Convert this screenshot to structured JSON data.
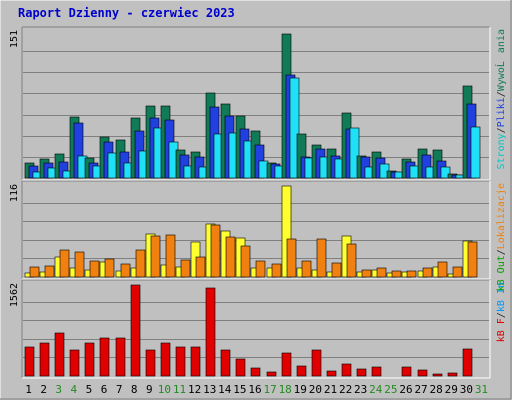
{
  "title": "Raport Dzienny -  czerwiec 2023",
  "colors": {
    "frame_bg": "#c0c0c0",
    "title": "#0000cc",
    "visits": "#117a56",
    "pages": "#2040e0",
    "files": "#20e0f8",
    "hits": "#ffff30",
    "sites": "#f08010",
    "kbf": "#e02020",
    "weekend_label": "#228b22",
    "label_blue": "#0000cc",
    "label_cyan": "#00c8c8",
    "label_orange": "#f08010",
    "label_green": "#00a000",
    "label_lightblue": "#0099ff",
    "label_red": "#e00000"
  },
  "right_labels": {
    "top": [
      {
        "text": "WywoĹania",
        "color": "#117a56"
      },
      {
        "text": "/",
        "color": "#222222"
      },
      {
        "text": "Pliki",
        "color": "#2040e0"
      },
      {
        "text": "/",
        "color": "#222222"
      },
      {
        "text": "Strony",
        "color": "#00c8c8"
      }
    ],
    "middle": [
      {
        "text": "Lokalizacje",
        "color": "#f08010"
      },
      {
        "text": "/",
        "color": "#222222"
      },
      {
        "text": "kB Out",
        "color": "#00a000"
      }
    ],
    "bottom": [
      {
        "text": "kB In",
        "color": "#0099ff"
      },
      {
        "text": "/",
        "color": "#222222"
      },
      {
        "text": "kB F",
        "color": "#e00000"
      }
    ]
  },
  "chart_data": {
    "type": "bar",
    "title": "Raport Dzienny -  czerwiec 2023",
    "x": [
      "1",
      "2",
      "3",
      "4",
      "5",
      "6",
      "7",
      "8",
      "9",
      "10",
      "11",
      "12",
      "13",
      "14",
      "15",
      "16",
      "17",
      "18",
      "19",
      "20",
      "21",
      "22",
      "23",
      "24",
      "25",
      "26",
      "27",
      "28",
      "29",
      "30",
      "31"
    ],
    "weekend_days": [
      "3",
      "4",
      "10",
      "11",
      "17",
      "18",
      "24",
      "25",
      "31"
    ],
    "panels": [
      {
        "id": "top",
        "ymax": 151,
        "ymax_label": "151",
        "series": [
          {
            "name": "WywoĹania",
            "color": "#117a56",
            "values": [
              16,
              20,
              25,
              63,
              21,
              42,
              39,
              62,
              74,
              74,
              29,
              27,
              88,
              77,
              64,
              49,
              16,
              149,
              46,
              34,
              30,
              67,
              23,
              27,
              7,
              20,
              30,
              29,
              4,
              95,
              0
            ]
          },
          {
            "name": "Pliki",
            "color": "#2040e0",
            "values": [
              12,
              16,
              17,
              57,
              16,
              37,
              27,
              49,
              62,
              60,
              24,
              22,
              73,
              64,
              51,
              34,
              14,
              107,
              22,
              30,
              23,
              51,
              22,
              21,
              6,
              17,
              24,
              18,
              3,
              77,
              0
            ]
          },
          {
            "name": "Strony",
            "color": "#20e0f8",
            "values": [
              6,
              10,
              7,
              23,
              12,
              26,
              16,
              28,
              52,
              37,
              12,
              11,
              45,
              47,
              38,
              18,
              12,
              103,
              21,
              22,
              20,
              52,
              11,
              14,
              6,
              12,
              11,
              11,
              3,
              53,
              0
            ]
          }
        ]
      },
      {
        "id": "middle",
        "ymax": 116,
        "ymax_label": "116",
        "series": [
          {
            "name": "Lokalizacje",
            "color": "#ffff30",
            "values": [
              5,
              7,
              25,
              12,
              9,
              19,
              8,
              11,
              55,
              15,
              13,
              44,
              67,
              58,
              50,
              12,
              12,
              116,
              12,
              9,
              7,
              52,
              6,
              9,
              5,
              6,
              8,
              13,
              4,
              46,
              0
            ]
          },
          {
            "name": "kB Out",
            "color": "#f08010",
            "values": [
              13,
              14,
              35,
              32,
              21,
              23,
              16,
              35,
              52,
              53,
              22,
              25,
              66,
              51,
              40,
              21,
              16,
              49,
              20,
              49,
              18,
              42,
              9,
              12,
              8,
              8,
              12,
              19,
              13,
              44,
              0
            ]
          }
        ]
      },
      {
        "id": "bottom",
        "ymax": 1562,
        "ymax_label": "1562",
        "series": [
          {
            "name": "kB F",
            "color": "#e00000",
            "values": [
              504,
              559,
              739,
              446,
              573,
              655,
              660,
              1560,
              450,
              559,
              491,
              491,
              1515,
              446,
              286,
              134,
              62,
              400,
              167,
              440,
              83,
              200,
              121,
              146,
              0,
              151,
              107,
              31,
              53,
              469,
              0
            ]
          }
        ]
      }
    ]
  }
}
